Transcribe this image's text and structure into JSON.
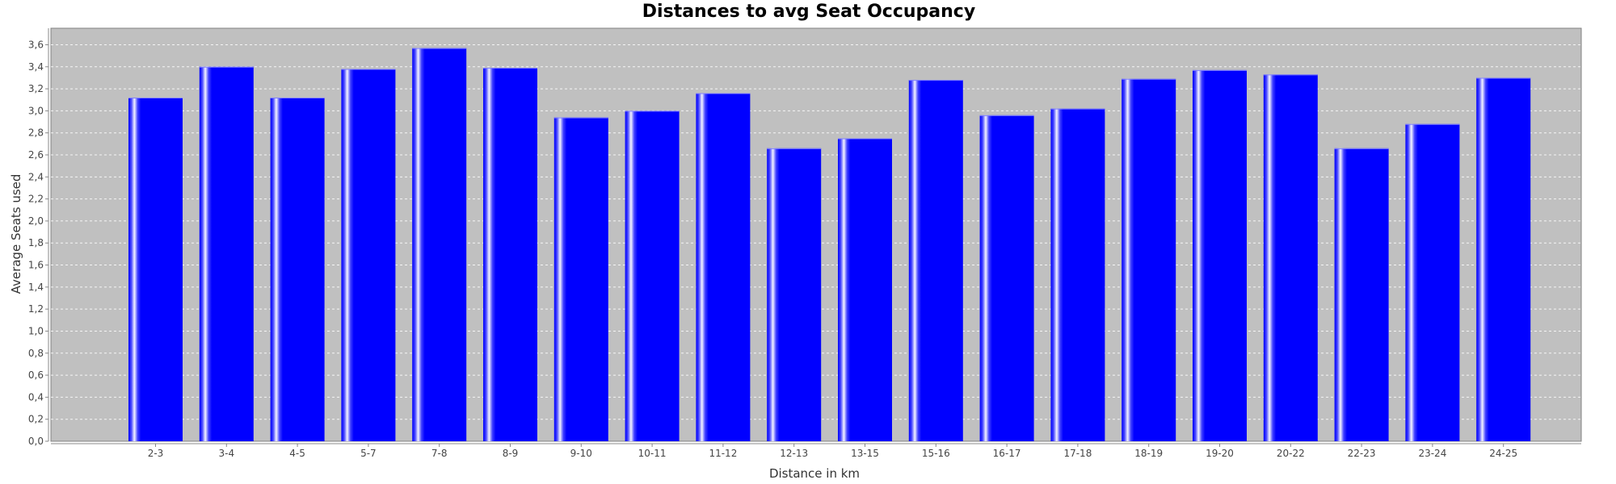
{
  "chart_data": {
    "type": "bar",
    "title": "Distances to avg Seat Occupancy",
    "xlabel": "Distance in km",
    "ylabel": "Average Seats used",
    "categories": [
      "2-3",
      "3-4",
      "4-5",
      "5-7",
      "7-8",
      "8-9",
      "9-10",
      "10-11",
      "11-12",
      "12-13",
      "13-15",
      "15-16",
      "16-17",
      "17-18",
      "18-19",
      "19-20",
      "20-22",
      "22-23",
      "23-24",
      "24-25"
    ],
    "values": [
      3.12,
      3.4,
      3.12,
      3.38,
      3.57,
      3.39,
      2.94,
      3.0,
      3.16,
      2.66,
      2.75,
      3.28,
      2.96,
      3.02,
      3.29,
      3.37,
      3.33,
      2.66,
      2.88,
      3.3
    ],
    "ylim": [
      0,
      3.75
    ],
    "yticks": [
      "0,0",
      "0,2",
      "0,4",
      "0,6",
      "0,8",
      "1,0",
      "1,2",
      "1,4",
      "1,6",
      "1,8",
      "2,0",
      "2,2",
      "2,4",
      "2,6",
      "2,8",
      "3,0",
      "3,2",
      "3,4",
      "3,6"
    ],
    "ytick_step": 0.2,
    "grid": true,
    "legend": "none",
    "colors": {
      "bar": "#0000ff",
      "plot_background": "#c0c0c0",
      "gridline": "#ffffff"
    }
  }
}
